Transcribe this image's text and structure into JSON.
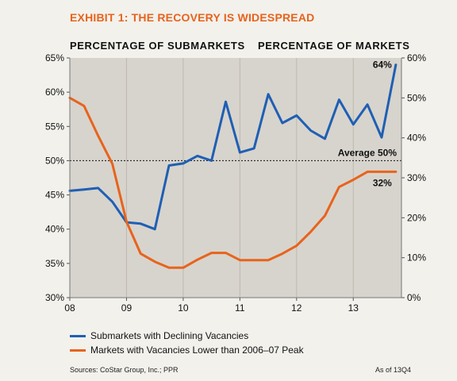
{
  "exhibit_title": "EXHIBIT 1: THE RECOVERY  IS WIDESPREAD",
  "left_heading": "PERCENTAGE  OF  SUBMARKETS",
  "right_heading": "PERCENTAGE  OF  MARKETS",
  "sources": "Sources: CoStar Group, Inc.; PPR",
  "as_of": "As of 13Q4",
  "colors": {
    "blue": "#1f5fb4",
    "orange": "#e8631c",
    "plot_bg": "#d7d4cd",
    "grid": "#bdb9b1"
  },
  "chart_data": {
    "type": "line",
    "title": "",
    "x_ticks": [
      {
        "value": 2008,
        "label": "08"
      },
      {
        "value": 2009,
        "label": "09"
      },
      {
        "value": 2010,
        "label": "10"
      },
      {
        "value": 2011,
        "label": "11"
      },
      {
        "value": 2012,
        "label": "12"
      },
      {
        "value": 2013,
        "label": "13"
      }
    ],
    "xlim": [
      2008,
      2013.85
    ],
    "y_left": {
      "ylim": [
        30,
        65
      ],
      "ticks": [
        30,
        35,
        40,
        45,
        50,
        55,
        60,
        65
      ],
      "tick_labels": [
        "30%",
        "35%",
        "40%",
        "45%",
        "50%",
        "55%",
        "60%",
        "65%"
      ]
    },
    "y_right": {
      "ylim": [
        0,
        60
      ],
      "ticks": [
        0,
        10,
        20,
        30,
        40,
        50,
        60
      ],
      "tick_labels": [
        "0%",
        "10%",
        "20%",
        "30%",
        "40%",
        "50%",
        "60%"
      ]
    },
    "grid": "vertical-only",
    "legend_position": "bottom",
    "series": [
      {
        "name": "Submarkets with Declining Vacancies",
        "axis": "left",
        "color": "#1f5fb4",
        "points": [
          {
            "x": 2008.0,
            "y": 45.6
          },
          {
            "x": 2008.25,
            "y": 45.8
          },
          {
            "x": 2008.5,
            "y": 46.0
          },
          {
            "x": 2008.75,
            "y": 44.0
          },
          {
            "x": 2009.0,
            "y": 41.0
          },
          {
            "x": 2009.25,
            "y": 40.8
          },
          {
            "x": 2009.5,
            "y": 40.0
          },
          {
            "x": 2009.75,
            "y": 49.3
          },
          {
            "x": 2010.0,
            "y": 49.6
          },
          {
            "x": 2010.25,
            "y": 50.7
          },
          {
            "x": 2010.5,
            "y": 50.0
          },
          {
            "x": 2010.75,
            "y": 58.6
          },
          {
            "x": 2011.0,
            "y": 51.2
          },
          {
            "x": 2011.25,
            "y": 51.8
          },
          {
            "x": 2011.5,
            "y": 59.7
          },
          {
            "x": 2011.75,
            "y": 55.5
          },
          {
            "x": 2012.0,
            "y": 56.6
          },
          {
            "x": 2012.25,
            "y": 54.4
          },
          {
            "x": 2012.5,
            "y": 53.2
          },
          {
            "x": 2012.75,
            "y": 58.9
          },
          {
            "x": 2013.0,
            "y": 55.3
          },
          {
            "x": 2013.25,
            "y": 58.2
          },
          {
            "x": 2013.5,
            "y": 53.4
          },
          {
            "x": 2013.75,
            "y": 64.0
          }
        ]
      },
      {
        "name": "Markets with Vacancies Lower than 2006–07 Peak",
        "axis": "right",
        "color": "#e8631c",
        "points": [
          {
            "x": 2008.0,
            "y": 50.0
          },
          {
            "x": 2008.25,
            "y": 48.0
          },
          {
            "x": 2008.5,
            "y": 40.5
          },
          {
            "x": 2008.75,
            "y": 33.5
          },
          {
            "x": 2009.0,
            "y": 19.0
          },
          {
            "x": 2009.25,
            "y": 11.0
          },
          {
            "x": 2009.5,
            "y": 9.0
          },
          {
            "x": 2009.75,
            "y": 7.5
          },
          {
            "x": 2010.0,
            "y": 7.5
          },
          {
            "x": 2010.25,
            "y": 9.5
          },
          {
            "x": 2010.5,
            "y": 11.2
          },
          {
            "x": 2010.75,
            "y": 11.2
          },
          {
            "x": 2011.0,
            "y": 9.4
          },
          {
            "x": 2011.25,
            "y": 9.4
          },
          {
            "x": 2011.5,
            "y": 9.4
          },
          {
            "x": 2011.75,
            "y": 11.0
          },
          {
            "x": 2012.0,
            "y": 13.0
          },
          {
            "x": 2012.25,
            "y": 16.5
          },
          {
            "x": 2012.5,
            "y": 20.5
          },
          {
            "x": 2012.75,
            "y": 27.7
          },
          {
            "x": 2013.0,
            "y": 29.5
          },
          {
            "x": 2013.25,
            "y": 31.5
          },
          {
            "x": 2013.5,
            "y": 31.5
          },
          {
            "x": 2013.75,
            "y": 31.5
          }
        ]
      }
    ],
    "reference_line": {
      "axis": "left",
      "value": 50,
      "label": "Average 50%"
    },
    "annotations": [
      {
        "series": 0,
        "text": "64%"
      },
      {
        "series": 1,
        "text": "32%"
      }
    ]
  }
}
